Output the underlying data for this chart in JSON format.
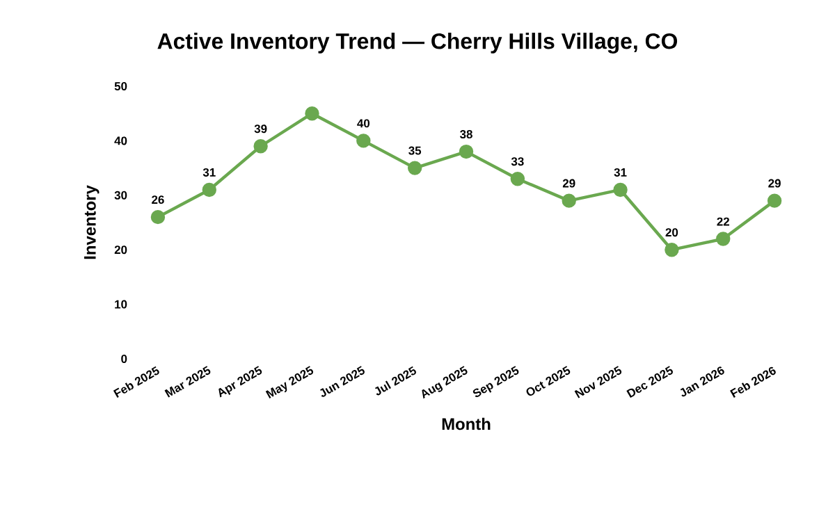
{
  "chart_data": {
    "type": "line",
    "title": "Active Inventory Trend — Cherry Hills Village, CO",
    "xlabel": "Month",
    "ylabel": "Inventory",
    "categories": [
      "Feb 2025",
      "Mar 2025",
      "Apr 2025",
      "May 2025",
      "Jun 2025",
      "Jul 2025",
      "Aug 2025",
      "Sep 2025",
      "Oct 2025",
      "Nov 2025",
      "Dec 2025",
      "Jan 2026",
      "Feb 2026"
    ],
    "series": [
      {
        "color": "#6aa84f",
        "values": [
          26,
          31,
          39,
          45,
          40,
          35,
          38,
          33,
          29,
          31,
          20,
          22,
          29
        ],
        "value_labels": [
          "26",
          "31",
          "39",
          null,
          "40",
          "35",
          "38",
          "33",
          "29",
          "31",
          "20",
          "22",
          "29"
        ]
      }
    ],
    "ylim": [
      0,
      50
    ],
    "yticks": [
      0,
      10,
      20,
      30,
      40,
      50
    ],
    "marker": "circle",
    "line_style": "solid"
  }
}
